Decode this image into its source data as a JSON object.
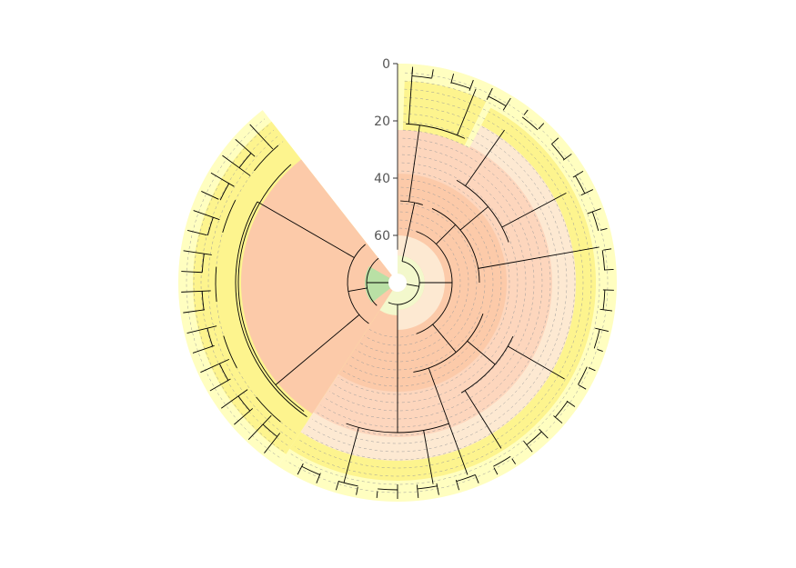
{
  "figure": {
    "type": "circular-dendrogram",
    "background": "#ffffff",
    "axis": {
      "ticks": [
        {
          "value": 0,
          "label": "0"
        },
        {
          "value": 20,
          "label": "20"
        },
        {
          "value": 40,
          "label": "40"
        },
        {
          "value": 60,
          "label": "60"
        }
      ],
      "color": "#333333"
    },
    "palette": {
      "outer_yellow_light": "#fffec0",
      "outer_yellow": "#fdf48e",
      "cream": "#fde9d2",
      "peach": "#fdd6bd",
      "salmon": "#fccaa9",
      "green": "#b9e0a5",
      "pale_green": "#f3f8cc",
      "branch": "#000000",
      "grid": "#9a9a9a"
    }
  }
}
